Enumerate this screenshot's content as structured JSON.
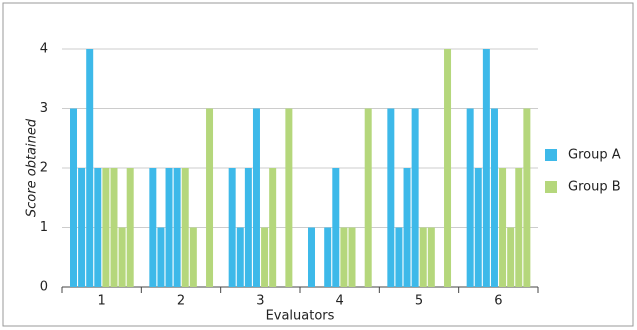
{
  "chart_data": {
    "type": "bar",
    "y_label": "Score obtained",
    "x_label": "Evaluators",
    "categories": [
      "1",
      "2",
      "3",
      "4",
      "5",
      "6"
    ],
    "series": [
      {
        "name": "Group A",
        "color": "#3db9e9",
        "values": [
          [
            3,
            2,
            4,
            2
          ],
          [
            2,
            1,
            2,
            2
          ],
          [
            2,
            1,
            2,
            3
          ],
          [
            1,
            0,
            1,
            2
          ],
          [
            3,
            1,
            2,
            3
          ],
          [
            3,
            2,
            4,
            3
          ]
        ]
      },
      {
        "name": "Group B",
        "color": "#b5d77c",
        "values": [
          [
            2,
            2,
            1,
            2
          ],
          [
            2,
            1,
            0,
            3
          ],
          [
            1,
            2,
            0,
            3
          ],
          [
            1,
            1,
            0,
            3
          ],
          [
            1,
            1,
            0,
            4
          ],
          [
            2,
            1,
            2,
            3
          ]
        ]
      }
    ],
    "ylim": [
      0,
      4
    ],
    "yticks": [
      0,
      1,
      2,
      3,
      4
    ],
    "grid": true,
    "legend": "right"
  }
}
